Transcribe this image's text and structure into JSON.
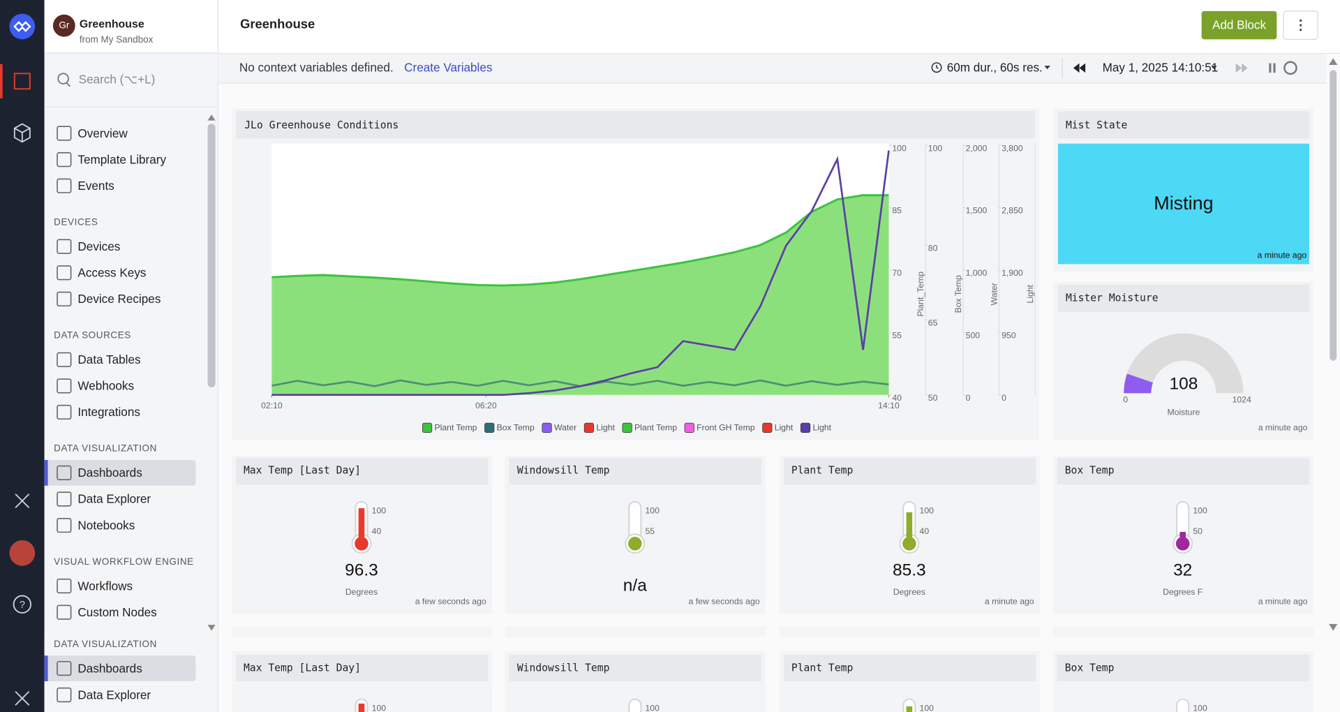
{
  "workspace": {
    "initials": "Gr",
    "name": "Greenhouse",
    "subtitle": "from My Sandbox"
  },
  "search": "Search (⌥+L)",
  "nav": [
    {
      "items": [
        "Overview",
        "Template Library",
        "Events"
      ]
    },
    {
      "heading": "DEVICES",
      "items": [
        "Devices",
        "Access Keys",
        "Device Recipes"
      ]
    },
    {
      "heading": "DATA SOURCES",
      "items": [
        "Data Tables",
        "Webhooks",
        "Integrations"
      ]
    },
    {
      "heading": "DATA VISUALIZATION",
      "items": [
        "Dashboards",
        "Data Explorer",
        "Notebooks"
      ]
    },
    {
      "heading": "VISUAL WORKFLOW ENGINE",
      "items": [
        "Workflows",
        "Custom Nodes"
      ]
    }
  ],
  "nav_sticky": {
    "heading": "DATA VISUALIZATION",
    "items": [
      "Dashboards",
      "Data Explorer"
    ]
  },
  "header": {
    "title": "Greenhouse",
    "add_block": "Add Block"
  },
  "context": {
    "message": "No context variables defined.",
    "link": "Create Variables",
    "duration": "60m dur., 60s res.",
    "time": "May 1, 2025 14:10:51"
  },
  "chart_data": {
    "type": "line",
    "title": "JLo Greenhouse Conditions",
    "x": [
      "02:10",
      "02:40",
      "03:10",
      "03:40",
      "04:10",
      "04:40",
      "05:10",
      "05:40",
      "06:10",
      "06:40",
      "07:10",
      "07:40",
      "08:10",
      "08:40",
      "09:10",
      "09:40",
      "10:10",
      "10:40",
      "11:10",
      "11:40",
      "12:10",
      "12:40",
      "13:10",
      "13:40",
      "14:10"
    ],
    "xlim": [
      "02:10",
      "14:10"
    ],
    "xticks": [
      "02:10",
      "06:20",
      "14:10"
    ],
    "axes": [
      {
        "lim": [
          40,
          100
        ],
        "ticks": [
          100,
          85,
          70,
          55,
          40
        ]
      },
      {
        "label": "Plant_Temp",
        "lim": [
          50,
          100
        ],
        "ticks": [
          100,
          80,
          65,
          50
        ]
      },
      {
        "label": "Box Temp",
        "lim": [
          0,
          2000
        ],
        "ticks": [
          {
            "value": 2000,
            "label": "2,000"
          },
          {
            "value": 1500,
            "label": "1,500"
          },
          {
            "value": 1000,
            "label": "1,000"
          },
          500,
          0
        ]
      },
      {
        "label": "Water",
        "lim": [
          0,
          3800
        ],
        "ticks": [
          {
            "value": 3800,
            "label": "3,800"
          },
          {
            "value": 2850,
            "label": "2,850"
          },
          {
            "value": 1900,
            "label": "1,900"
          },
          950,
          0
        ]
      },
      {
        "label": "Light"
      }
    ],
    "series": [
      {
        "name": "Plant Temp",
        "color": "#3ec33e",
        "fill": "#8ce07c",
        "area": true,
        "axis": 0,
        "values": [
          68.3,
          68.6,
          68.8,
          68.5,
          68.2,
          67.8,
          67.3,
          66.8,
          66.4,
          66.3,
          66.5,
          67,
          67.8,
          68.8,
          69.8,
          70.8,
          71.8,
          73,
          74.3,
          76,
          79,
          84,
          87,
          88,
          88
        ]
      },
      {
        "name": "Box Temp",
        "color": "#4d8f74",
        "axis": 0,
        "values": [
          42.2,
          43.4,
          42.3,
          43.2,
          42.1,
          43.5,
          42.4,
          43.1,
          42.2,
          43.4,
          42.3,
          43.3,
          42.1,
          43.2,
          42.4,
          43.4,
          42.2,
          43.1,
          42.3,
          43.5,
          42.2,
          43.3,
          42.4,
          43.2,
          42.5
        ]
      },
      {
        "name": "Light",
        "color": "#5b3ea6",
        "axis": 3,
        "values": [
          0,
          0,
          0,
          0,
          0,
          0,
          0,
          0,
          0,
          0,
          26,
          66,
          132,
          224,
          330,
          422,
          818,
          752,
          686,
          1346,
          2269,
          2797,
          3589,
          686,
          3721
        ]
      }
    ],
    "legend": [
      {
        "name": "Plant Temp",
        "color": "#3ec33e"
      },
      {
        "name": "Box Temp",
        "color": "#2b6f73"
      },
      {
        "name": "Water",
        "color": "#8a5cf0"
      },
      {
        "name": "Light",
        "color": "#e8392c"
      },
      {
        "name": "Plant Temp",
        "color": "#3ec33e"
      },
      {
        "name": "Front GH Temp",
        "color": "#f25fe5"
      },
      {
        "name": "Light",
        "color": "#e8392c"
      },
      {
        "name": "Light",
        "color": "#5b3ea6"
      }
    ]
  },
  "mist": {
    "title": "Mist State",
    "state": "Misting",
    "time": "a minute ago",
    "color": "#4dd8f5"
  },
  "moisture": {
    "title": "Mister Moisture",
    "value": 108,
    "min": 0,
    "max": 1024,
    "label": "Moisture",
    "time": "a minute ago",
    "color": "#8e5cf0"
  },
  "gauges": [
    {
      "title": "Max Temp [Last Day]",
      "value": 96.3,
      "ticks": [
        100,
        40
      ],
      "unit": "Degrees",
      "time": "a few seconds ago",
      "color": "#e8392c"
    },
    {
      "title": "Windowsill Temp",
      "value": null,
      "value_label": "n/a",
      "ticks": [
        100,
        55
      ],
      "time": "a few seconds ago",
      "color": "#8fad2a"
    },
    {
      "title": "Plant Temp",
      "value": 85.3,
      "ticks": [
        100,
        40
      ],
      "unit": "Degrees",
      "time": "a minute ago",
      "color": "#8fad2a"
    },
    {
      "title": "Box Temp",
      "value": 32,
      "ticks": [
        100,
        50
      ],
      "unit": "Degrees F",
      "time": "a minute ago",
      "color": "#a0289e"
    }
  ]
}
